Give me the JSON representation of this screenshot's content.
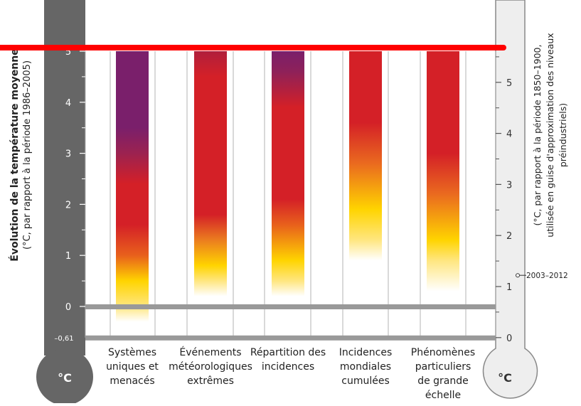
{
  "chart_data": {
    "type": "bar",
    "left_axis": {
      "title": "Évolution de la température moyenne",
      "subtitle": "(°C, par rapport à la période 1986–2005)",
      "ticks": [
        "0",
        "1",
        "2",
        "3",
        "4",
        "5"
      ],
      "extra_tick": "–0,61",
      "range": [
        -0.61,
        5.0
      ],
      "unit_label": "°C"
    },
    "right_axis": {
      "title_line1": "(°C, par rapport à la période 1850–1900,",
      "title_line2": "utilisée en guise d'approximation des niveaux",
      "title_line3": "préindustriels)",
      "ticks": [
        "0",
        "1",
        "2",
        "3",
        "4",
        "5"
      ],
      "range": [
        0,
        5.61
      ],
      "unit_label": "°C",
      "annotation": "2003–2012",
      "annotation_value": 0.61
    },
    "categories": [
      [
        "Systèmes",
        "uniques et",
        "menacés"
      ],
      [
        "Événements",
        "météorologiques",
        "extrêmes"
      ],
      [
        "Répartition des",
        "incidences"
      ],
      [
        "Incidences",
        "mondiales",
        "cumulées"
      ],
      [
        "Phénomènes",
        "particuliers",
        "de grande",
        "échelle"
      ]
    ],
    "risk_colors": {
      "undetectable": "#ffffff",
      "moderate": "#ffd400",
      "high": "#d42027",
      "very_high": "#7a1f6b"
    },
    "gradients": [
      [
        [
          -0.3,
          "#ffffff"
        ],
        [
          0.0,
          "#ffe680"
        ],
        [
          0.5,
          "#ffd400"
        ],
        [
          1.0,
          "#e8601c"
        ],
        [
          1.6,
          "#d42027"
        ],
        [
          2.4,
          "#d42027"
        ],
        [
          3.0,
          "#9c2250"
        ],
        [
          3.5,
          "#7a1f6b"
        ],
        [
          5.0,
          "#7a1f6b"
        ]
      ],
      [
        [
          0.2,
          "#ffffff"
        ],
        [
          0.5,
          "#ffe680"
        ],
        [
          0.8,
          "#ffd400"
        ],
        [
          1.3,
          "#eb7d1f"
        ],
        [
          1.8,
          "#d42027"
        ],
        [
          4.5,
          "#d42027"
        ],
        [
          5.0,
          "#b01f3c"
        ]
      ],
      [
        [
          0.2,
          "#ffffff"
        ],
        [
          0.5,
          "#ffe680"
        ],
        [
          0.9,
          "#ffd400"
        ],
        [
          1.6,
          "#e8601c"
        ],
        [
          2.1,
          "#d42027"
        ],
        [
          3.9,
          "#d42027"
        ],
        [
          4.6,
          "#8e2159"
        ],
        [
          5.0,
          "#7a1f6b"
        ]
      ],
      [
        [
          0.9,
          "#ffffff"
        ],
        [
          1.3,
          "#ffe680"
        ],
        [
          1.9,
          "#ffd400"
        ],
        [
          2.8,
          "#ea6a1f"
        ],
        [
          3.6,
          "#d42027"
        ],
        [
          5.0,
          "#d42027"
        ]
      ],
      [
        [
          0.3,
          "#ffffff"
        ],
        [
          0.9,
          "#ffe680"
        ],
        [
          1.3,
          "#ffd400"
        ],
        [
          2.2,
          "#ea6a1f"
        ],
        [
          3.0,
          "#d42027"
        ],
        [
          5.0,
          "#d42027"
        ]
      ]
    ]
  }
}
